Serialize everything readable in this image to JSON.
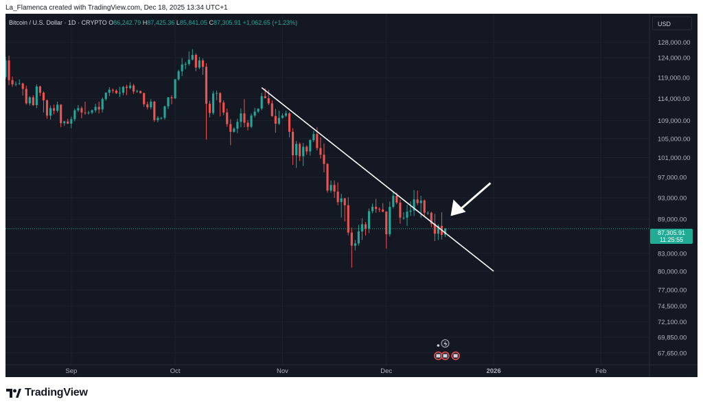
{
  "caption": "La_Flamenca created with TradingView.com, Dec 18, 2025 13:34 UTC+1",
  "legend": {
    "symbol": "Bitcoin / U.S. Dollar · 1D · CRYPTO",
    "o_label": "O",
    "o_value": "86,242.79",
    "h_label": "H",
    "h_value": "87,425.36",
    "l_label": "L",
    "l_value": "85,841.05",
    "c_label": "C",
    "c_value": "87,305.91",
    "change": "+1,062.65 (+1.23%)"
  },
  "currency": "USD",
  "last_price": {
    "value": "87,305.91",
    "countdown": "11:25:55"
  },
  "brand": "TradingView",
  "colors": {
    "background": "#141823",
    "up": "#26a69a",
    "down": "#ef5350",
    "trendline": "#ffffff",
    "grid": "#1e222d",
    "tag": "#22ab94"
  },
  "chart_data": {
    "type": "candlestick",
    "symbol": "BTCUSD",
    "timeframe": "1D",
    "x_range": [
      "2025-08-13",
      "2026-02-15"
    ],
    "y_range": [
      66500,
      131000
    ],
    "y_ticks": [
      128000,
      124000,
      119000,
      114000,
      109000,
      105000,
      101000,
      97000,
      93000,
      89000,
      83000,
      80000,
      77000,
      74500,
      72100,
      69850,
      67650
    ],
    "y_tick_labels": [
      "128,000.00",
      "124,000.00",
      "119,000.00",
      "114,000.00",
      "109,000.00",
      "105,000.00",
      "101,000.00",
      "97,000.00",
      "93,000.00",
      "89,000.00",
      "83,000.00",
      "80,000.00",
      "77,000.00",
      "74,500.00",
      "72,100.00",
      "69,850.00",
      "67,650.00"
    ],
    "x_ticks": [
      {
        "label": "Sep",
        "date": "2025-09-01"
      },
      {
        "label": "Oct",
        "date": "2025-10-01"
      },
      {
        "label": "Nov",
        "date": "2025-11-01"
      },
      {
        "label": "Dec",
        "date": "2025-12-01"
      },
      {
        "label": "2026",
        "date": "2026-01-01"
      },
      {
        "label": "Feb",
        "date": "2026-02-01"
      }
    ],
    "candles": [
      {
        "date": "2025-08-13",
        "o": 119200,
        "h": 124200,
        "l": 118800,
        "c": 123300
      },
      {
        "date": "2025-08-14",
        "o": 123300,
        "h": 124500,
        "l": 117200,
        "c": 118400
      },
      {
        "date": "2025-08-15",
        "o": 118400,
        "h": 119300,
        "l": 116800,
        "c": 117400
      },
      {
        "date": "2025-08-16",
        "o": 117400,
        "h": 118100,
        "l": 116900,
        "c": 117500
      },
      {
        "date": "2025-08-17",
        "o": 117500,
        "h": 118600,
        "l": 117300,
        "c": 117600
      },
      {
        "date": "2025-08-18",
        "o": 117600,
        "h": 117800,
        "l": 114700,
        "c": 116300
      },
      {
        "date": "2025-08-19",
        "o": 116300,
        "h": 117100,
        "l": 112600,
        "c": 112900
      },
      {
        "date": "2025-08-20",
        "o": 112900,
        "h": 114600,
        "l": 112400,
        "c": 114300
      },
      {
        "date": "2025-08-21",
        "o": 114300,
        "h": 114800,
        "l": 112300,
        "c": 112500
      },
      {
        "date": "2025-08-22",
        "o": 112500,
        "h": 117400,
        "l": 111800,
        "c": 116900
      },
      {
        "date": "2025-08-23",
        "o": 116900,
        "h": 117100,
        "l": 114600,
        "c": 115400
      },
      {
        "date": "2025-08-24",
        "o": 115400,
        "h": 115700,
        "l": 110800,
        "c": 113600
      },
      {
        "date": "2025-08-25",
        "o": 113600,
        "h": 113800,
        "l": 109400,
        "c": 110100
      },
      {
        "date": "2025-08-26",
        "o": 110100,
        "h": 112400,
        "l": 109200,
        "c": 111800
      },
      {
        "date": "2025-08-27",
        "o": 111800,
        "h": 112600,
        "l": 110400,
        "c": 111200
      },
      {
        "date": "2025-08-28",
        "o": 111200,
        "h": 113300,
        "l": 110800,
        "c": 112600
      },
      {
        "date": "2025-08-29",
        "o": 112600,
        "h": 112700,
        "l": 107500,
        "c": 108400
      },
      {
        "date": "2025-08-30",
        "o": 108400,
        "h": 108900,
        "l": 107800,
        "c": 108800
      },
      {
        "date": "2025-08-31",
        "o": 108800,
        "h": 109400,
        "l": 108200,
        "c": 108300
      },
      {
        "date": "2025-09-01",
        "o": 108300,
        "h": 109900,
        "l": 107300,
        "c": 109300
      },
      {
        "date": "2025-09-02",
        "o": 109300,
        "h": 111700,
        "l": 108800,
        "c": 111300
      },
      {
        "date": "2025-09-03",
        "o": 111300,
        "h": 112500,
        "l": 110900,
        "c": 111800
      },
      {
        "date": "2025-09-04",
        "o": 111800,
        "h": 112200,
        "l": 109500,
        "c": 110800
      },
      {
        "date": "2025-09-05",
        "o": 110800,
        "h": 113300,
        "l": 110300,
        "c": 110700
      },
      {
        "date": "2025-09-06",
        "o": 110700,
        "h": 111200,
        "l": 110300,
        "c": 110800
      },
      {
        "date": "2025-09-07",
        "o": 110800,
        "h": 111500,
        "l": 110400,
        "c": 111300
      },
      {
        "date": "2025-09-08",
        "o": 111300,
        "h": 112800,
        "l": 110800,
        "c": 112100
      },
      {
        "date": "2025-09-09",
        "o": 112100,
        "h": 113300,
        "l": 110600,
        "c": 111500
      },
      {
        "date": "2025-09-10",
        "o": 111500,
        "h": 114300,
        "l": 110800,
        "c": 113900
      },
      {
        "date": "2025-09-11",
        "o": 113900,
        "h": 115500,
        "l": 113500,
        "c": 115400
      },
      {
        "date": "2025-09-12",
        "o": 115400,
        "h": 116700,
        "l": 114600,
        "c": 116100
      },
      {
        "date": "2025-09-13",
        "o": 116100,
        "h": 116400,
        "l": 115300,
        "c": 115900
      },
      {
        "date": "2025-09-14",
        "o": 115900,
        "h": 116200,
        "l": 115100,
        "c": 115300
      },
      {
        "date": "2025-09-15",
        "o": 115300,
        "h": 116800,
        "l": 114400,
        "c": 115400
      },
      {
        "date": "2025-09-16",
        "o": 115400,
        "h": 117000,
        "l": 114800,
        "c": 116800
      },
      {
        "date": "2025-09-17",
        "o": 116800,
        "h": 117300,
        "l": 114800,
        "c": 116500
      },
      {
        "date": "2025-09-18",
        "o": 116500,
        "h": 117900,
        "l": 116200,
        "c": 117100
      },
      {
        "date": "2025-09-19",
        "o": 117100,
        "h": 117500,
        "l": 115100,
        "c": 115700
      },
      {
        "date": "2025-09-20",
        "o": 115700,
        "h": 116100,
        "l": 115400,
        "c": 115800
      },
      {
        "date": "2025-09-21",
        "o": 115800,
        "h": 115900,
        "l": 115200,
        "c": 115300
      },
      {
        "date": "2025-09-22",
        "o": 115300,
        "h": 115400,
        "l": 112100,
        "c": 112700
      },
      {
        "date": "2025-09-23",
        "o": 112700,
        "h": 113300,
        "l": 111500,
        "c": 112000
      },
      {
        "date": "2025-09-24",
        "o": 112000,
        "h": 113900,
        "l": 111500,
        "c": 113300
      },
      {
        "date": "2025-09-25",
        "o": 113300,
        "h": 113500,
        "l": 108700,
        "c": 109100
      },
      {
        "date": "2025-09-26",
        "o": 109100,
        "h": 110000,
        "l": 108600,
        "c": 109600
      },
      {
        "date": "2025-09-27",
        "o": 109600,
        "h": 109800,
        "l": 109200,
        "c": 109600
      },
      {
        "date": "2025-09-28",
        "o": 109600,
        "h": 112400,
        "l": 109200,
        "c": 112200
      },
      {
        "date": "2025-09-29",
        "o": 112200,
        "h": 114400,
        "l": 111600,
        "c": 114300
      },
      {
        "date": "2025-09-30",
        "o": 114300,
        "h": 114800,
        "l": 112700,
        "c": 114100
      },
      {
        "date": "2025-10-01",
        "o": 114100,
        "h": 118700,
        "l": 113900,
        "c": 118600
      },
      {
        "date": "2025-10-02",
        "o": 118600,
        "h": 121000,
        "l": 118300,
        "c": 120600
      },
      {
        "date": "2025-10-03",
        "o": 120600,
        "h": 123900,
        "l": 119400,
        "c": 122300
      },
      {
        "date": "2025-10-04",
        "o": 122300,
        "h": 122900,
        "l": 121100,
        "c": 122400
      },
      {
        "date": "2025-10-05",
        "o": 122400,
        "h": 125600,
        "l": 122000,
        "c": 123500
      },
      {
        "date": "2025-10-06",
        "o": 123500,
        "h": 126200,
        "l": 123300,
        "c": 124700
      },
      {
        "date": "2025-10-07",
        "o": 124700,
        "h": 125100,
        "l": 120600,
        "c": 121500
      },
      {
        "date": "2025-10-08",
        "o": 121500,
        "h": 124200,
        "l": 121100,
        "c": 123300
      },
      {
        "date": "2025-10-09",
        "o": 123300,
        "h": 123800,
        "l": 119700,
        "c": 121700
      },
      {
        "date": "2025-10-10",
        "o": 121700,
        "h": 122600,
        "l": 104800,
        "c": 112800
      },
      {
        "date": "2025-10-11",
        "o": 112800,
        "h": 113500,
        "l": 109700,
        "c": 110700
      },
      {
        "date": "2025-10-12",
        "o": 110700,
        "h": 115800,
        "l": 110300,
        "c": 115200
      },
      {
        "date": "2025-10-13",
        "o": 115200,
        "h": 115900,
        "l": 113600,
        "c": 115300
      },
      {
        "date": "2025-10-14",
        "o": 115300,
        "h": 115500,
        "l": 109900,
        "c": 113100
      },
      {
        "date": "2025-10-15",
        "o": 113100,
        "h": 113600,
        "l": 110200,
        "c": 110800
      },
      {
        "date": "2025-10-16",
        "o": 110800,
        "h": 111700,
        "l": 107600,
        "c": 108200
      },
      {
        "date": "2025-10-17",
        "o": 108200,
        "h": 109300,
        "l": 103600,
        "c": 106500
      },
      {
        "date": "2025-10-18",
        "o": 106500,
        "h": 107500,
        "l": 106300,
        "c": 107200
      },
      {
        "date": "2025-10-19",
        "o": 107200,
        "h": 109400,
        "l": 106200,
        "c": 108700
      },
      {
        "date": "2025-10-20",
        "o": 108700,
        "h": 111700,
        "l": 107500,
        "c": 110600
      },
      {
        "date": "2025-10-21",
        "o": 110600,
        "h": 113900,
        "l": 107500,
        "c": 108500
      },
      {
        "date": "2025-10-22",
        "o": 108500,
        "h": 109100,
        "l": 106800,
        "c": 107600
      },
      {
        "date": "2025-10-23",
        "o": 107600,
        "h": 110600,
        "l": 107300,
        "c": 110100
      },
      {
        "date": "2025-10-24",
        "o": 110100,
        "h": 111900,
        "l": 109700,
        "c": 111000
      },
      {
        "date": "2025-10-25",
        "o": 111000,
        "h": 111700,
        "l": 110700,
        "c": 111700
      },
      {
        "date": "2025-10-26",
        "o": 111700,
        "h": 115400,
        "l": 111300,
        "c": 114600
      },
      {
        "date": "2025-10-27",
        "o": 114600,
        "h": 116400,
        "l": 114200,
        "c": 114100
      },
      {
        "date": "2025-10-28",
        "o": 114100,
        "h": 116100,
        "l": 112500,
        "c": 112900
      },
      {
        "date": "2025-10-29",
        "o": 112900,
        "h": 113600,
        "l": 109800,
        "c": 110000
      },
      {
        "date": "2025-10-30",
        "o": 110000,
        "h": 111600,
        "l": 106300,
        "c": 108300
      },
      {
        "date": "2025-10-31",
        "o": 108300,
        "h": 111200,
        "l": 108000,
        "c": 109600
      },
      {
        "date": "2025-11-01",
        "o": 109600,
        "h": 110600,
        "l": 109400,
        "c": 110100
      },
      {
        "date": "2025-11-02",
        "o": 110100,
        "h": 111200,
        "l": 109800,
        "c": 110600
      },
      {
        "date": "2025-11-03",
        "o": 110600,
        "h": 110900,
        "l": 105300,
        "c": 106500
      },
      {
        "date": "2025-11-04",
        "o": 106500,
        "h": 107300,
        "l": 99500,
        "c": 101500
      },
      {
        "date": "2025-11-05",
        "o": 101500,
        "h": 104500,
        "l": 98900,
        "c": 103900
      },
      {
        "date": "2025-11-06",
        "o": 103900,
        "h": 104200,
        "l": 100300,
        "c": 101300
      },
      {
        "date": "2025-11-07",
        "o": 101300,
        "h": 104100,
        "l": 99300,
        "c": 103300
      },
      {
        "date": "2025-11-08",
        "o": 103300,
        "h": 103600,
        "l": 101600,
        "c": 102300
      },
      {
        "date": "2025-11-09",
        "o": 102300,
        "h": 104900,
        "l": 101400,
        "c": 104700
      },
      {
        "date": "2025-11-10",
        "o": 104700,
        "h": 106700,
        "l": 104300,
        "c": 106000
      },
      {
        "date": "2025-11-11",
        "o": 106000,
        "h": 107500,
        "l": 102500,
        "c": 103000
      },
      {
        "date": "2025-11-12",
        "o": 103000,
        "h": 105300,
        "l": 100800,
        "c": 101600
      },
      {
        "date": "2025-11-13",
        "o": 101600,
        "h": 104000,
        "l": 98000,
        "c": 99700
      },
      {
        "date": "2025-11-14",
        "o": 99700,
        "h": 99900,
        "l": 94000,
        "c": 94400
      },
      {
        "date": "2025-11-15",
        "o": 94400,
        "h": 96400,
        "l": 94000,
        "c": 95500
      },
      {
        "date": "2025-11-16",
        "o": 95500,
        "h": 96400,
        "l": 93000,
        "c": 94200
      },
      {
        "date": "2025-11-17",
        "o": 94200,
        "h": 96000,
        "l": 91600,
        "c": 92200
      },
      {
        "date": "2025-11-18",
        "o": 92200,
        "h": 93800,
        "l": 89300,
        "c": 92900
      },
      {
        "date": "2025-11-19",
        "o": 92900,
        "h": 93000,
        "l": 88600,
        "c": 91600
      },
      {
        "date": "2025-11-20",
        "o": 91600,
        "h": 93100,
        "l": 86100,
        "c": 86600
      },
      {
        "date": "2025-11-21",
        "o": 86600,
        "h": 87500,
        "l": 80600,
        "c": 84300
      },
      {
        "date": "2025-11-22",
        "o": 84300,
        "h": 85300,
        "l": 83500,
        "c": 84700
      },
      {
        "date": "2025-11-23",
        "o": 84700,
        "h": 88000,
        "l": 84300,
        "c": 86800
      },
      {
        "date": "2025-11-24",
        "o": 86800,
        "h": 89200,
        "l": 85300,
        "c": 88100
      },
      {
        "date": "2025-11-25",
        "o": 88100,
        "h": 88500,
        "l": 86100,
        "c": 87300
      },
      {
        "date": "2025-11-26",
        "o": 87300,
        "h": 91000,
        "l": 86500,
        "c": 90500
      },
      {
        "date": "2025-11-27",
        "o": 90500,
        "h": 91900,
        "l": 90100,
        "c": 91300
      },
      {
        "date": "2025-11-28",
        "o": 91300,
        "h": 92800,
        "l": 90200,
        "c": 90900
      },
      {
        "date": "2025-11-29",
        "o": 90900,
        "h": 91200,
        "l": 90300,
        "c": 90800
      },
      {
        "date": "2025-11-30",
        "o": 90800,
        "h": 92000,
        "l": 90300,
        "c": 90400
      },
      {
        "date": "2025-12-01",
        "o": 90400,
        "h": 90500,
        "l": 83800,
        "c": 86300
      },
      {
        "date": "2025-12-02",
        "o": 86300,
        "h": 92300,
        "l": 85900,
        "c": 91300
      },
      {
        "date": "2025-12-03",
        "o": 91300,
        "h": 94200,
        "l": 91000,
        "c": 93400
      },
      {
        "date": "2025-12-04",
        "o": 93400,
        "h": 94000,
        "l": 91800,
        "c": 92100
      },
      {
        "date": "2025-12-05",
        "o": 92100,
        "h": 92700,
        "l": 88200,
        "c": 89300
      },
      {
        "date": "2025-12-06",
        "o": 89300,
        "h": 90300,
        "l": 88900,
        "c": 89300
      },
      {
        "date": "2025-12-07",
        "o": 89300,
        "h": 91700,
        "l": 87800,
        "c": 90400
      },
      {
        "date": "2025-12-08",
        "o": 90400,
        "h": 92300,
        "l": 89600,
        "c": 90600
      },
      {
        "date": "2025-12-09",
        "o": 90600,
        "h": 94500,
        "l": 89600,
        "c": 92700
      },
      {
        "date": "2025-12-10",
        "o": 92700,
        "h": 94400,
        "l": 91600,
        "c": 92000
      },
      {
        "date": "2025-12-11",
        "o": 92000,
        "h": 93400,
        "l": 89300,
        "c": 92500
      },
      {
        "date": "2025-12-12",
        "o": 92500,
        "h": 92700,
        "l": 89400,
        "c": 90200
      },
      {
        "date": "2025-12-13",
        "o": 90200,
        "h": 90500,
        "l": 89800,
        "c": 90200
      },
      {
        "date": "2025-12-14",
        "o": 90200,
        "h": 90400,
        "l": 87600,
        "c": 88200
      },
      {
        "date": "2025-12-15",
        "o": 88200,
        "h": 90000,
        "l": 85100,
        "c": 86400
      },
      {
        "date": "2025-12-16",
        "o": 86400,
        "h": 88100,
        "l": 85300,
        "c": 87800
      },
      {
        "date": "2025-12-17",
        "o": 87800,
        "h": 90300,
        "l": 85400,
        "c": 86200
      },
      {
        "date": "2025-12-18",
        "o": 86242.79,
        "h": 87425.36,
        "l": 85841.05,
        "c": 87305.91
      }
    ],
    "last_close": 87305.91,
    "trendline": {
      "from": {
        "date": "2025-10-26",
        "price": 116600
      },
      "to": {
        "date": "2026-01-01",
        "price": 80000
      }
    }
  }
}
